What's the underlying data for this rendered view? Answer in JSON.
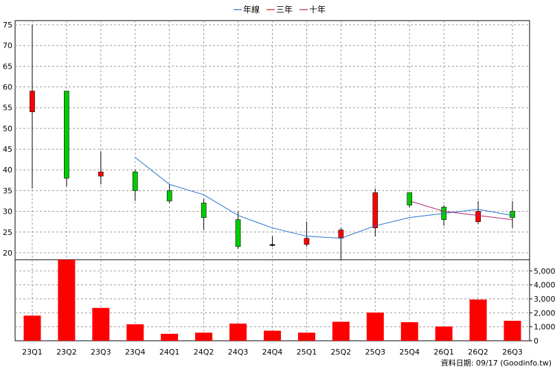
{
  "legend": [
    {
      "label": "年線",
      "color": "#1f6fd0"
    },
    {
      "label": "三年",
      "color": "#d01f1f"
    },
    {
      "label": "十年",
      "color": "#b0206a"
    }
  ],
  "footer": "資料日期: 09/17  (Goodinfo.tw)",
  "colors": {
    "up": "#ff0000",
    "down": "#00cc00",
    "volume": "#ff0000",
    "year_line": "#1f6fd0",
    "three_year_line": "#b0206a"
  },
  "chart_data": [
    {
      "type": "candlestick",
      "categories": [
        "23Q1",
        "23Q2",
        "23Q3",
        "23Q4",
        "24Q1",
        "24Q2",
        "24Q3",
        "24Q4",
        "25Q1",
        "25Q2",
        "25Q3",
        "25Q4",
        "26Q1",
        "26Q2",
        "26Q3"
      ],
      "ylim": [
        18,
        76
      ],
      "yticks": [
        20,
        25,
        30,
        35,
        40,
        45,
        50,
        55,
        60,
        65,
        70,
        75
      ],
      "grid": true,
      "candles": [
        {
          "open": 54,
          "close": 59,
          "high": 75,
          "low": 35.5
        },
        {
          "open": 59,
          "close": 38,
          "high": 59,
          "low": 36
        },
        {
          "open": 38.5,
          "close": 39.5,
          "high": 44.5,
          "low": 36.5
        },
        {
          "open": 39.5,
          "close": 35,
          "high": 40,
          "low": 32.5
        },
        {
          "open": 35,
          "close": 32.5,
          "high": 36.5,
          "low": 32
        },
        {
          "open": 32,
          "close": 28.5,
          "high": 33,
          "low": 25.5
        },
        {
          "open": 28,
          "close": 21.5,
          "high": 30,
          "low": 21
        },
        {
          "open": 22,
          "close": 22,
          "high": 24,
          "low": 21.5
        },
        {
          "open": 22,
          "close": 23.5,
          "high": 27.5,
          "low": 21.5
        },
        {
          "open": 23.5,
          "close": 25.5,
          "high": 26,
          "low": 18
        },
        {
          "open": 26,
          "close": 34.5,
          "high": 35.5,
          "low": 24
        },
        {
          "open": 34.5,
          "close": 31.5,
          "high": 34.5,
          "low": 31
        },
        {
          "open": 31,
          "close": 28,
          "high": 31.5,
          "low": 26.5
        },
        {
          "open": 27.5,
          "close": 30,
          "high": 32.5,
          "low": 27
        },
        {
          "open": 30,
          "close": 28.5,
          "high": 32.5,
          "low": 26
        }
      ],
      "series": [
        {
          "name": "年線",
          "values": [
            null,
            null,
            null,
            43,
            36.5,
            34,
            29,
            26,
            24,
            23.5,
            26.5,
            28.5,
            29.5,
            30.5,
            29
          ]
        },
        {
          "name": "三年",
          "values": [
            null,
            null,
            null,
            null,
            null,
            null,
            null,
            null,
            null,
            null,
            null,
            32.5,
            30,
            29,
            28
          ]
        }
      ]
    },
    {
      "type": "bar",
      "categories": [
        "23Q1",
        "23Q2",
        "23Q3",
        "23Q4",
        "24Q1",
        "24Q2",
        "24Q3",
        "24Q4",
        "25Q1",
        "25Q2",
        "25Q3",
        "25Q4",
        "26Q1",
        "26Q2",
        "26Q3"
      ],
      "values": [
        1800,
        5800,
        2350,
        1180,
        500,
        580,
        1230,
        720,
        580,
        1360,
        2020,
        1330,
        1020,
        2950,
        1430
      ],
      "ylim": [
        0,
        5800
      ],
      "yticks": [
        0,
        1000,
        2000,
        3000,
        4000,
        5000
      ],
      "ytick_labels": [
        "0",
        "1,000",
        "2,000",
        "3,000",
        "4,000",
        "5,000"
      ],
      "grid": true
    }
  ]
}
